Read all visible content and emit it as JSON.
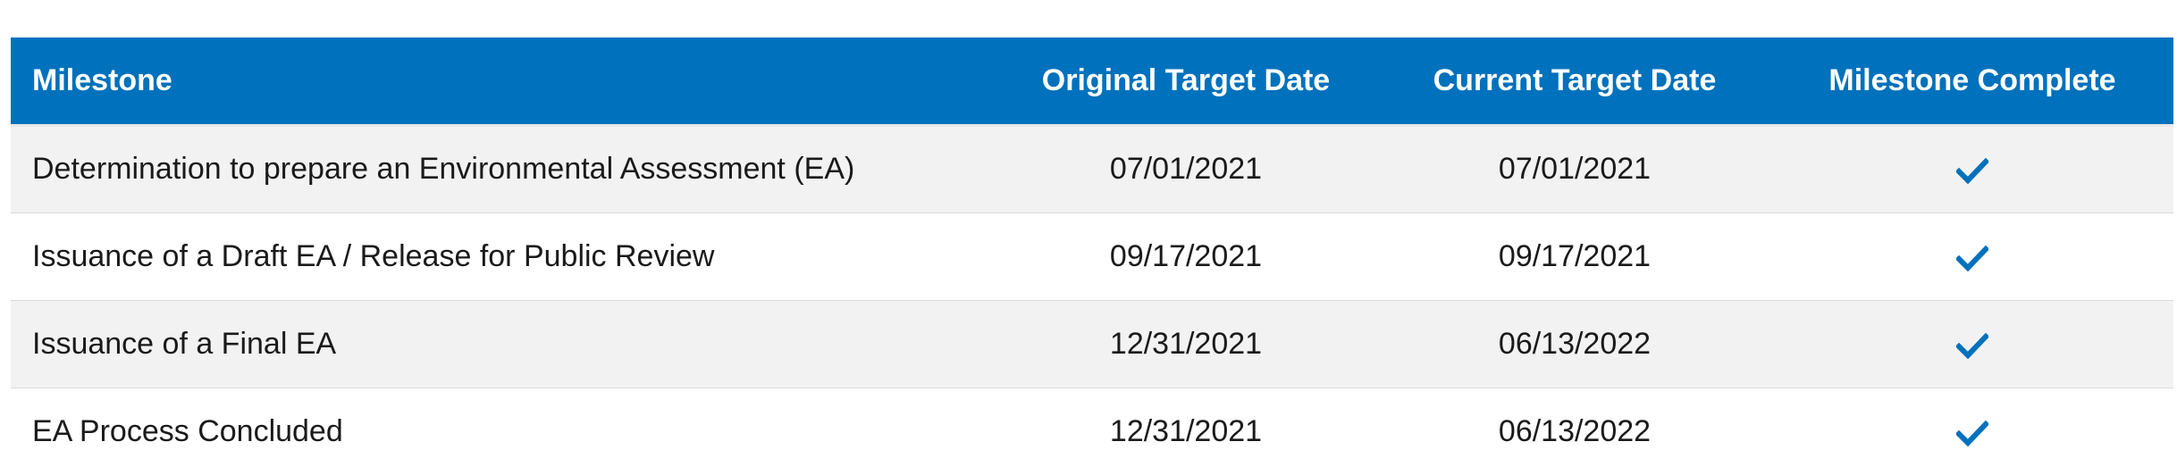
{
  "table": {
    "headers": {
      "milestone": "Milestone",
      "original_target_date": "Original Target Date",
      "current_target_date": "Current Target Date",
      "milestone_complete": "Milestone Complete"
    },
    "rows": [
      {
        "milestone": "Determination to prepare an Environmental Assessment (EA)",
        "original_target_date": "07/01/2021",
        "current_target_date": "07/01/2021",
        "complete": true,
        "complete_icon": "check-icon"
      },
      {
        "milestone": "Issuance of a Draft EA / Release for Public Review",
        "original_target_date": "09/17/2021",
        "current_target_date": "09/17/2021",
        "complete": true,
        "complete_icon": "check-icon"
      },
      {
        "milestone": "Issuance of a Final EA",
        "original_target_date": "12/31/2021",
        "current_target_date": "06/13/2022",
        "complete": true,
        "complete_icon": "check-icon"
      },
      {
        "milestone": "EA Process Concluded",
        "original_target_date": "12/31/2021",
        "current_target_date": "06/13/2022",
        "complete": true,
        "complete_icon": "check-icon"
      }
    ]
  },
  "colors": {
    "header_background": "#0071bc",
    "header_text": "#ffffff",
    "row_shaded": "#f2f2f2",
    "row_plain": "#ffffff",
    "check_color": "#0071bc"
  }
}
